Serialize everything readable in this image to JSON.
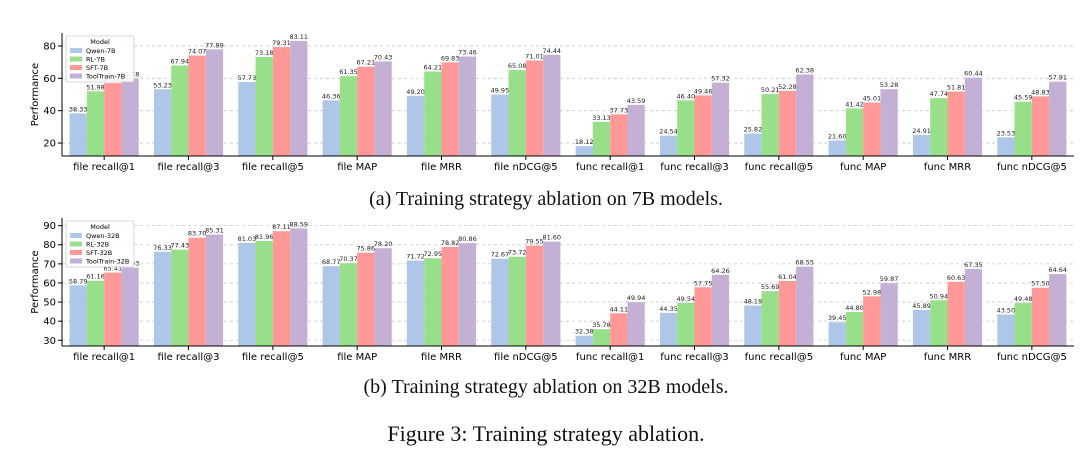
{
  "figure_caption": "Figure 3: Training strategy ablation.",
  "colors": {
    "series": [
      "#aec7e8",
      "#98df8a",
      "#ff9896",
      "#c5b0d5"
    ]
  },
  "chart_data": [
    {
      "type": "bar",
      "caption": "(a) Training strategy ablation on 7B models.",
      "ylabel": "Performance",
      "ylim": [
        12,
        88
      ],
      "yticks": [
        20,
        40,
        60,
        80
      ],
      "grid": true,
      "legend": {
        "title": "Model",
        "placement": "top-left"
      },
      "categories": [
        "file recall@1",
        "file recall@3",
        "file recall@5",
        "file MAP",
        "file MRR",
        "file nDCG@5",
        "func recall@1",
        "func recall@3",
        "func recall@5",
        "func MAP",
        "func MRR",
        "func nDCG@5"
      ],
      "series": [
        {
          "name": "Qwen-7B",
          "values": [
            38.33,
            53.23,
            57.73,
            46.36,
            49.2,
            49.95,
            18.12,
            24.54,
            25.82,
            21.6,
            24.91,
            23.53
          ]
        },
        {
          "name": "RL-7B",
          "values": [
            51.98,
            67.94,
            73.18,
            61.35,
            64.21,
            65.08,
            33.13,
            46.4,
            50.21,
            41.42,
            47.74,
            45.59
          ]
        },
        {
          "name": "SFT-7B",
          "values": [
            57.0,
            74.07,
            79.31,
            67.21,
            69.83,
            71.01,
            37.73,
            49.46,
            52.28,
            45.01,
            51.81,
            48.83
          ]
        },
        {
          "name": "ToolTrain-7B",
          "values": [
            59.78,
            77.89,
            83.11,
            70.43,
            73.46,
            74.44,
            43.59,
            57.32,
            62.38,
            53.28,
            60.44,
            57.91
          ]
        }
      ]
    },
    {
      "type": "bar",
      "caption": "(b) Training strategy ablation on 32B models.",
      "ylabel": "Performance",
      "ylim": [
        27,
        94
      ],
      "yticks": [
        30,
        40,
        50,
        60,
        70,
        80,
        90
      ],
      "grid": true,
      "legend": {
        "title": "Model",
        "placement": "top-left"
      },
      "categories": [
        "file recall@1",
        "file recall@3",
        "file recall@5",
        "file MAP",
        "file MRR",
        "file nDCG@5",
        "func recall@1",
        "func recall@3",
        "func recall@5",
        "func MAP",
        "func MRR",
        "func nDCG@5"
      ],
      "series": [
        {
          "name": "Qwen-32B",
          "values": [
            58.79,
            76.33,
            81.03,
            68.77,
            71.72,
            72.67,
            32.38,
            44.35,
            48.19,
            39.45,
            45.89,
            43.5
          ]
        },
        {
          "name": "RL-32B",
          "values": [
            61.16,
            77.43,
            81.96,
            70.37,
            72.95,
            73.72,
            35.78,
            49.54,
            55.69,
            44.8,
            50.94,
            49.48
          ]
        },
        {
          "name": "SFT-32B",
          "values": [
            65.41,
            83.7,
            87.11,
            75.86,
            78.82,
            79.55,
            44.11,
            57.75,
            61.04,
            52.98,
            60.63,
            57.5
          ]
        },
        {
          "name": "ToolTrain-32B",
          "values": [
            68.03,
            85.31,
            88.59,
            78.2,
            80.86,
            81.6,
            49.94,
            64.26,
            68.55,
            59.87,
            67.35,
            64.64
          ]
        }
      ]
    }
  ]
}
